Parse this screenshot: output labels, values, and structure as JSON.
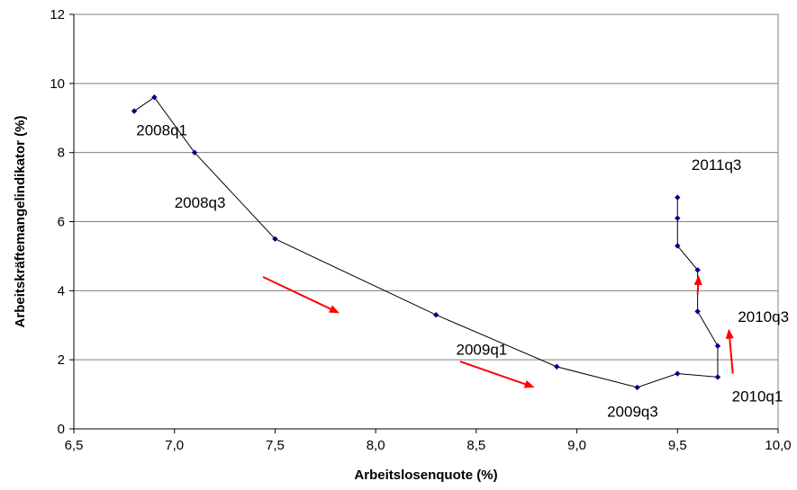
{
  "chart_data": {
    "type": "line",
    "title": "",
    "xlabel": "Arbeitslosenquote (%)",
    "ylabel": "Arbeitskräftemangelindikator (%)",
    "xlim": [
      6.5,
      10.0
    ],
    "ylim": [
      0,
      12
    ],
    "x_ticks": [
      6.5,
      7.0,
      7.5,
      8.0,
      8.5,
      9.0,
      9.5,
      10.0
    ],
    "x_tick_labels": [
      "6,5",
      "7,0",
      "7,5",
      "8,0",
      "8,5",
      "9,0",
      "9,5",
      "10,0"
    ],
    "y_ticks": [
      0,
      2,
      4,
      6,
      8,
      10,
      12
    ],
    "y_tick_labels": [
      "0",
      "2",
      "4",
      "6",
      "8",
      "10",
      "12"
    ],
    "grid": "horizontal",
    "line_color": "#000000",
    "marker_color": "#000080",
    "arrow_color": "#ff0000",
    "series": [
      {
        "x": [
          6.8,
          6.9,
          7.1,
          7.5,
          8.3,
          8.9,
          9.3,
          9.5,
          9.7,
          9.7,
          9.6,
          9.6,
          9.5,
          9.5,
          9.5
        ],
        "y": [
          9.2,
          9.6,
          8.0,
          5.5,
          3.3,
          1.8,
          1.2,
          1.6,
          1.5,
          2.4,
          3.4,
          4.6,
          5.3,
          6.1,
          6.7
        ]
      }
    ],
    "annotations": [
      {
        "text": "2008q1",
        "x": 6.81,
        "y": 8.5
      },
      {
        "text": "2008q3",
        "x": 7.0,
        "y": 6.4
      },
      {
        "text": "2009q1",
        "x": 8.4,
        "y": 2.15
      },
      {
        "text": "2009q3",
        "x": 9.15,
        "y": 0.35
      },
      {
        "text": "2010q1",
        "x": 9.77,
        "y": 0.8
      },
      {
        "text": "2010q3",
        "x": 9.8,
        "y": 3.1
      },
      {
        "text": "2011q3",
        "x": 9.57,
        "y": 7.5
      }
    ],
    "arrows": [
      {
        "from": [
          7.44,
          4.4
        ],
        "to": [
          7.82,
          3.35
        ]
      },
      {
        "from": [
          8.42,
          1.95
        ],
        "to": [
          8.79,
          1.2
        ]
      },
      {
        "from": [
          9.775,
          1.6
        ],
        "to": [
          9.755,
          2.9
        ]
      },
      {
        "from": [
          9.6,
          3.9
        ],
        "to": [
          9.605,
          4.45
        ]
      }
    ]
  }
}
